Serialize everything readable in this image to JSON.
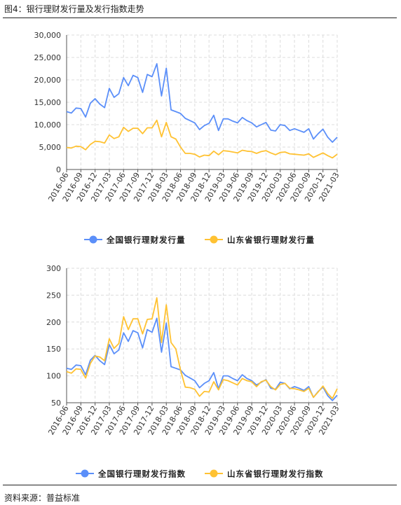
{
  "figure_title": "图4：银行理财发行量及发行指数走势",
  "source": "资料来源：普益标准",
  "colors": {
    "national": "#5B8FF9",
    "shandong": "#FFC233"
  },
  "chart_data": [
    {
      "type": "line",
      "title": "",
      "xlabel": "",
      "ylabel": "",
      "ylim": [
        0,
        30000
      ],
      "yticks": [
        0,
        5000,
        10000,
        15000,
        20000,
        25000,
        30000
      ],
      "ytick_labels": [
        "0",
        "5,000",
        "10,000",
        "15,000",
        "20,000",
        "25,000",
        "30,000"
      ],
      "grid": true,
      "legend_position": "bottom",
      "x_tick_labels": [
        "2016-06",
        "2016-09",
        "2016-12",
        "2017-03",
        "2017-06",
        "2017-09",
        "2017-12",
        "2018-03",
        "2018-06",
        "2018-09",
        "2018-12",
        "2019-03",
        "2019-06",
        "2019-09",
        "2019-12",
        "2020-03",
        "2020-06",
        "2020-09",
        "2020-12",
        "2021-03"
      ],
      "series": [
        {
          "name": "全国银行理财发行量",
          "color": "#5B8FF9",
          "values": [
            12900,
            12600,
            13700,
            13600,
            11700,
            14800,
            15800,
            14600,
            13800,
            18100,
            16100,
            16900,
            20500,
            18700,
            21000,
            20500,
            17200,
            21200,
            20700,
            23600,
            16400,
            22600,
            13300,
            12900,
            12500,
            11400,
            10900,
            10400,
            8900,
            9800,
            10300,
            12100,
            8700,
            11300,
            11300,
            10800,
            10400,
            11600,
            10900,
            10400,
            9500,
            10000,
            10500,
            8800,
            8600,
            10000,
            9800,
            8700,
            9100,
            8700,
            8300,
            9100,
            6800,
            8000,
            9000,
            7200,
            6100,
            7200
          ]
        },
        {
          "name": "山东省银行理财发行量",
          "color": "#FFC233",
          "values": [
            4900,
            4800,
            5200,
            5100,
            4400,
            5600,
            6300,
            6200,
            5900,
            7700,
            6900,
            7300,
            9400,
            8500,
            9200,
            9200,
            8000,
            9300,
            9300,
            11000,
            7300,
            10500,
            7300,
            6800,
            5000,
            3600,
            3600,
            3400,
            2800,
            3200,
            3100,
            4100,
            3300,
            4200,
            4100,
            3900,
            3700,
            4300,
            4100,
            4000,
            3600,
            4000,
            4200,
            3700,
            3300,
            3800,
            3900,
            3500,
            3400,
            3300,
            3200,
            3500,
            2700,
            3200,
            3700,
            3100,
            2600,
            3400
          ]
        }
      ]
    },
    {
      "type": "line",
      "title": "",
      "xlabel": "",
      "ylabel": "",
      "ylim": [
        50,
        300
      ],
      "yticks": [
        50,
        100,
        150,
        200,
        250,
        300
      ],
      "ytick_labels": [
        "50",
        "100",
        "150",
        "200",
        "250",
        "300"
      ],
      "grid": true,
      "legend_position": "bottom",
      "x_tick_labels": [
        "2016-06",
        "2016-09",
        "2016-12",
        "2017-03",
        "2017-06",
        "2017-09",
        "2017-12",
        "2018-03",
        "2018-06",
        "2018-09",
        "2018-12",
        "2019-03",
        "2019-06",
        "2019-09",
        "2019-12",
        "2020-03",
        "2020-06",
        "2020-09",
        "2020-12",
        "2021-03"
      ],
      "series": [
        {
          "name": "全国银行理财发行指数",
          "color": "#5B8FF9",
          "values": [
            114,
            112,
            120,
            119,
            102,
            129,
            138,
            128,
            121,
            158,
            141,
            148,
            180,
            164,
            184,
            180,
            152,
            186,
            181,
            207,
            144,
            198,
            117,
            114,
            111,
            101,
            96,
            91,
            78,
            86,
            91,
            106,
            76,
            100,
            100,
            95,
            91,
            102,
            95,
            91,
            83,
            88,
            93,
            77,
            75,
            88,
            86,
            76,
            80,
            77,
            73,
            80,
            60,
            71,
            79,
            63,
            54,
            64
          ]
        },
        {
          "name": "山东省银行理财发行指数",
          "color": "#FFC233",
          "values": [
            108,
            105,
            113,
            112,
            96,
            123,
            137,
            135,
            128,
            169,
            151,
            160,
            210,
            186,
            206,
            206,
            178,
            205,
            206,
            245,
            162,
            232,
            162,
            150,
            111,
            79,
            78,
            75,
            62,
            71,
            70,
            89,
            74,
            93,
            91,
            87,
            83,
            95,
            91,
            89,
            80,
            89,
            92,
            80,
            74,
            84,
            86,
            77,
            76,
            74,
            71,
            77,
            60,
            70,
            81,
            67,
            58,
            76
          ]
        }
      ]
    }
  ]
}
